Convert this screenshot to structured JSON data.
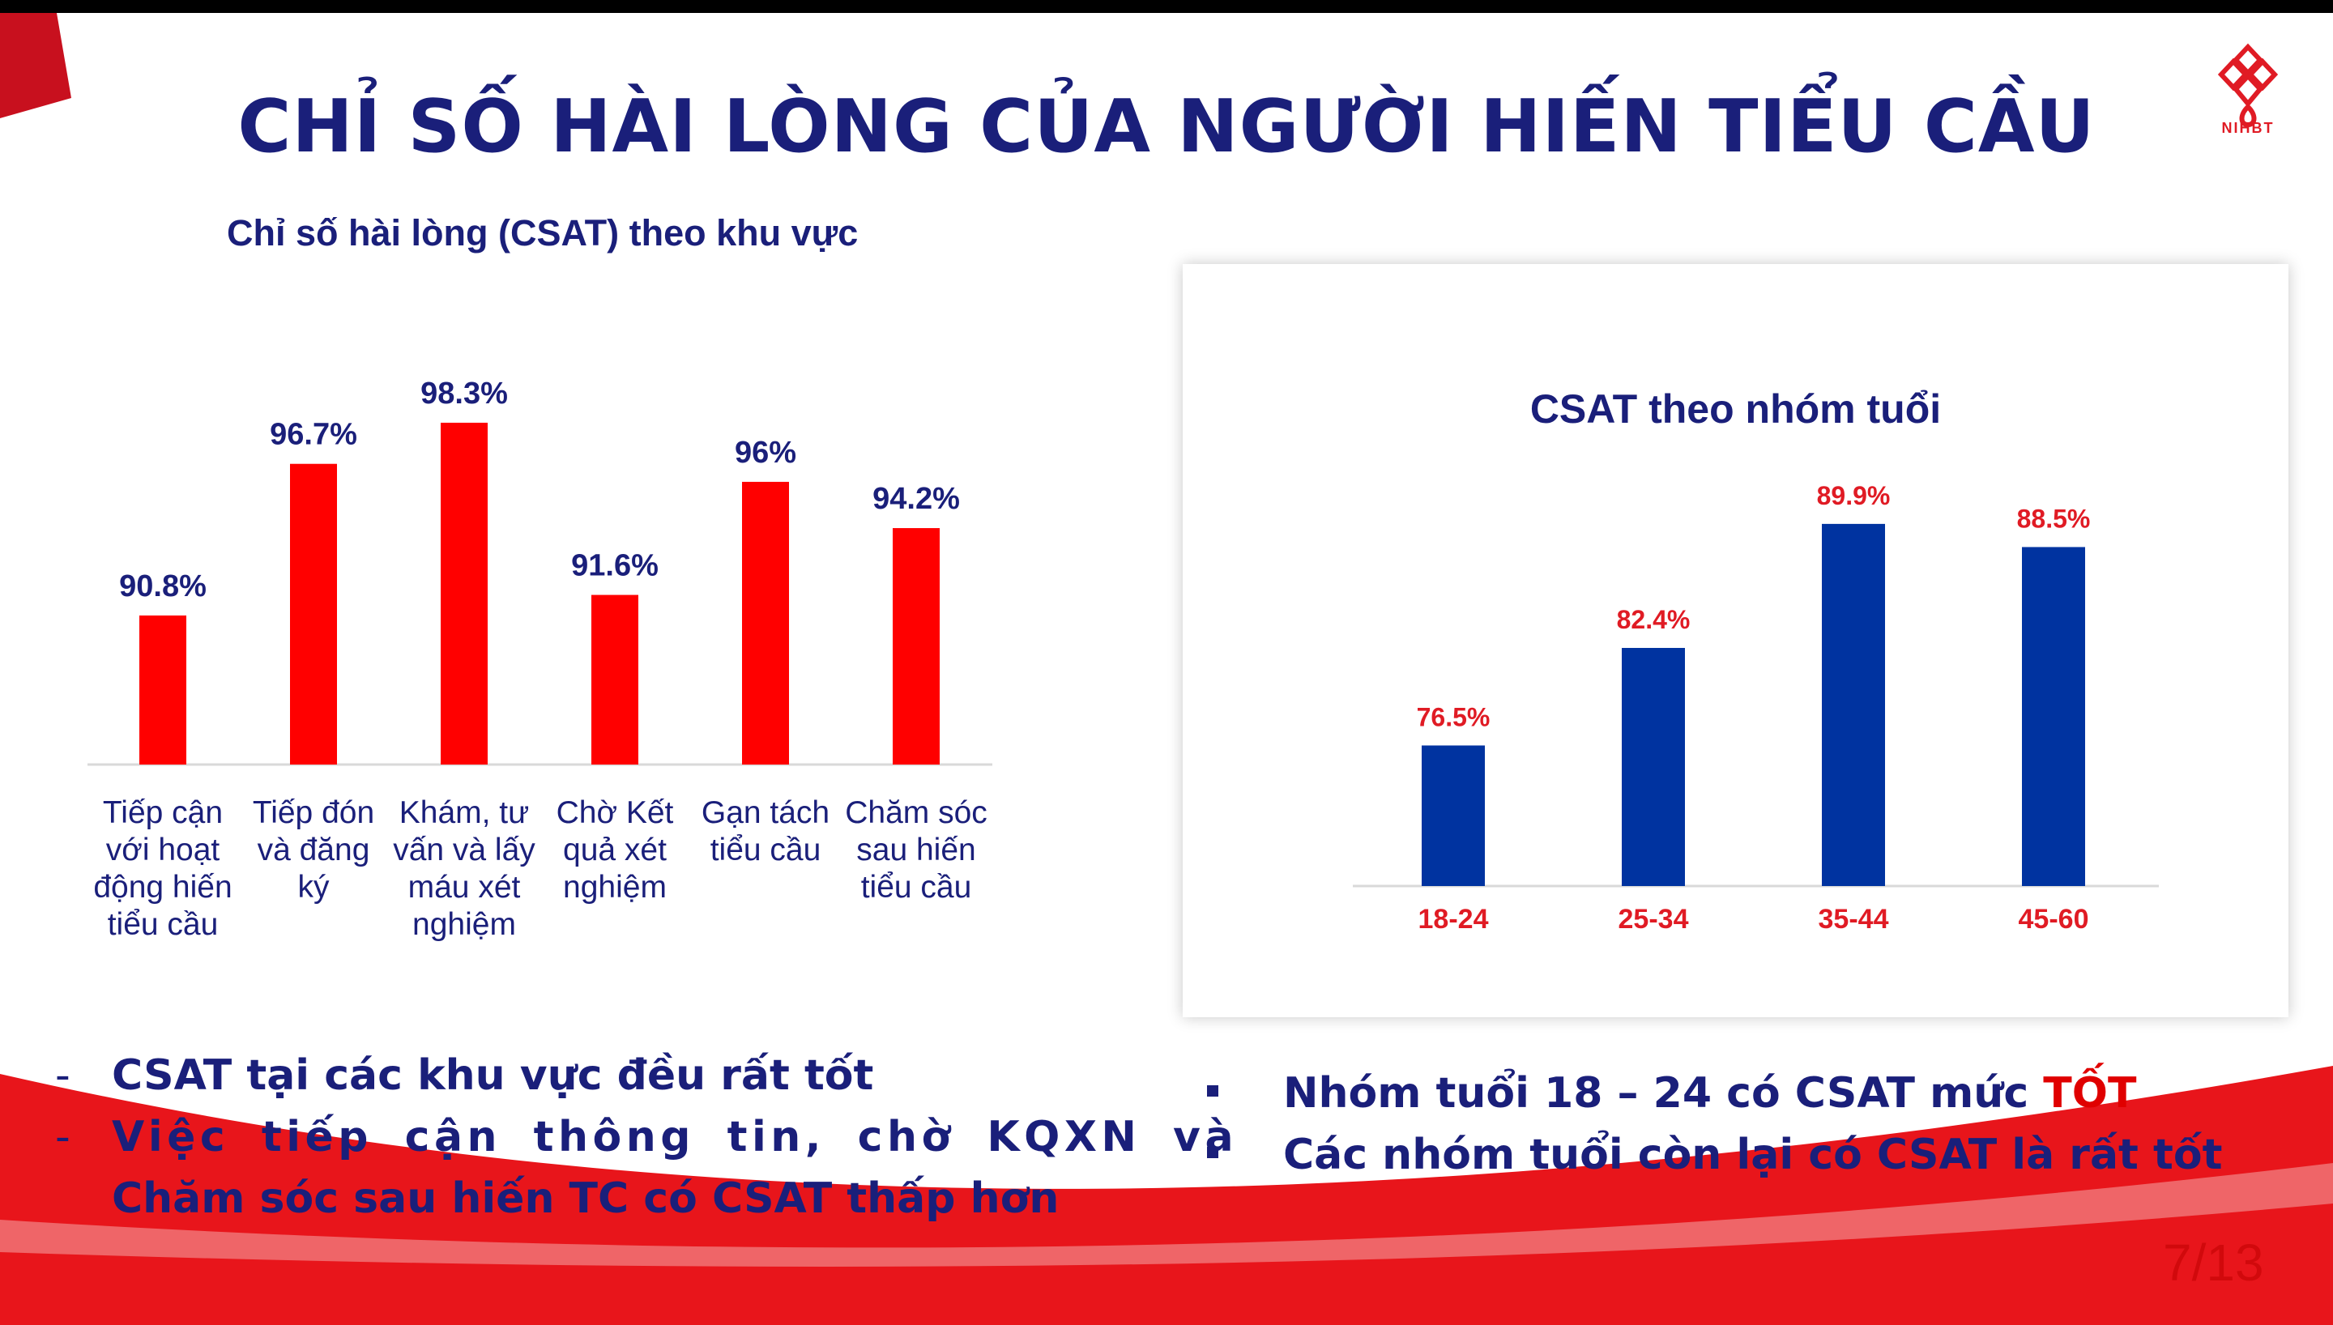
{
  "title": "CHỈ SỐ HÀI LÒNG CỦA NGƯỜI HIẾN TIỂU CẦU",
  "logo": {
    "text": "NIHBT"
  },
  "colors": {
    "navy": "#1a1f7a",
    "red_bar": "#ff0000",
    "blue_bar": "#0033a0",
    "red_label": "#e01b24"
  },
  "chart_data": [
    {
      "type": "bar",
      "title": "Chỉ số hài lòng (CSAT) theo khu vực",
      "categories": [
        "Tiếp cận với hoạt động hiến tiểu cầu",
        "Tiếp đón và đăng ký",
        "Khám, tư vấn và lấy máu xét nghiệm",
        "Chờ Kết quả xét nghiệm",
        "Gạn tách tiểu cầu",
        "Chăm sóc sau hiến tiểu cầu"
      ],
      "category_lines": [
        [
          "Tiếp cận",
          "với hoạt",
          "động hiến",
          "tiểu cầu"
        ],
        [
          "Tiếp đón",
          "và đăng",
          "ký"
        ],
        [
          "Khám, tư",
          "vấn và lấy",
          "máu xét",
          "nghiệm"
        ],
        [
          "Chờ Kết",
          "quả xét",
          "nghiệm"
        ],
        [
          "Gạn tách",
          "tiểu cầu"
        ],
        [
          "Chăm sóc",
          "sau hiến",
          "tiểu cầu"
        ]
      ],
      "values": [
        90.8,
        96.7,
        98.3,
        91.6,
        96,
        94.2
      ],
      "data_labels": [
        "90.8%",
        "96.7%",
        "98.3%",
        "91.6%",
        "96%",
        "94.2%"
      ],
      "ylim": [
        85,
        100
      ],
      "grid": false,
      "color": "#ff0000"
    },
    {
      "type": "bar",
      "title": "CSAT theo nhóm tuổi",
      "categories": [
        "18-24",
        "25-34",
        "35-44",
        "45-60"
      ],
      "values": [
        76.5,
        82.4,
        89.9,
        88.5
      ],
      "data_labels": [
        "76.5%",
        "82.4%",
        "89.9%",
        "88.5%"
      ],
      "ylim": [
        68,
        92
      ],
      "grid": false,
      "color": "#0033a0"
    }
  ],
  "left_bullets": [
    {
      "marker": "-",
      "lines": [
        "CSAT tại các khu vực đều rất tốt"
      ]
    },
    {
      "marker": "-",
      "lines": [
        "Việc tiếp cận thông tin, chờ KQXN và",
        "Chăm sóc sau hiến TC có CSAT thấp hơn"
      ]
    }
  ],
  "right_bullets": [
    {
      "text": "Nhóm tuổi 18 – 24 có CSAT mức ",
      "highlight": "TỐT"
    },
    {
      "text": "Các nhóm tuổi còn lại có CSAT là rất tốt",
      "highlight": ""
    }
  ],
  "page_number": "7/13"
}
